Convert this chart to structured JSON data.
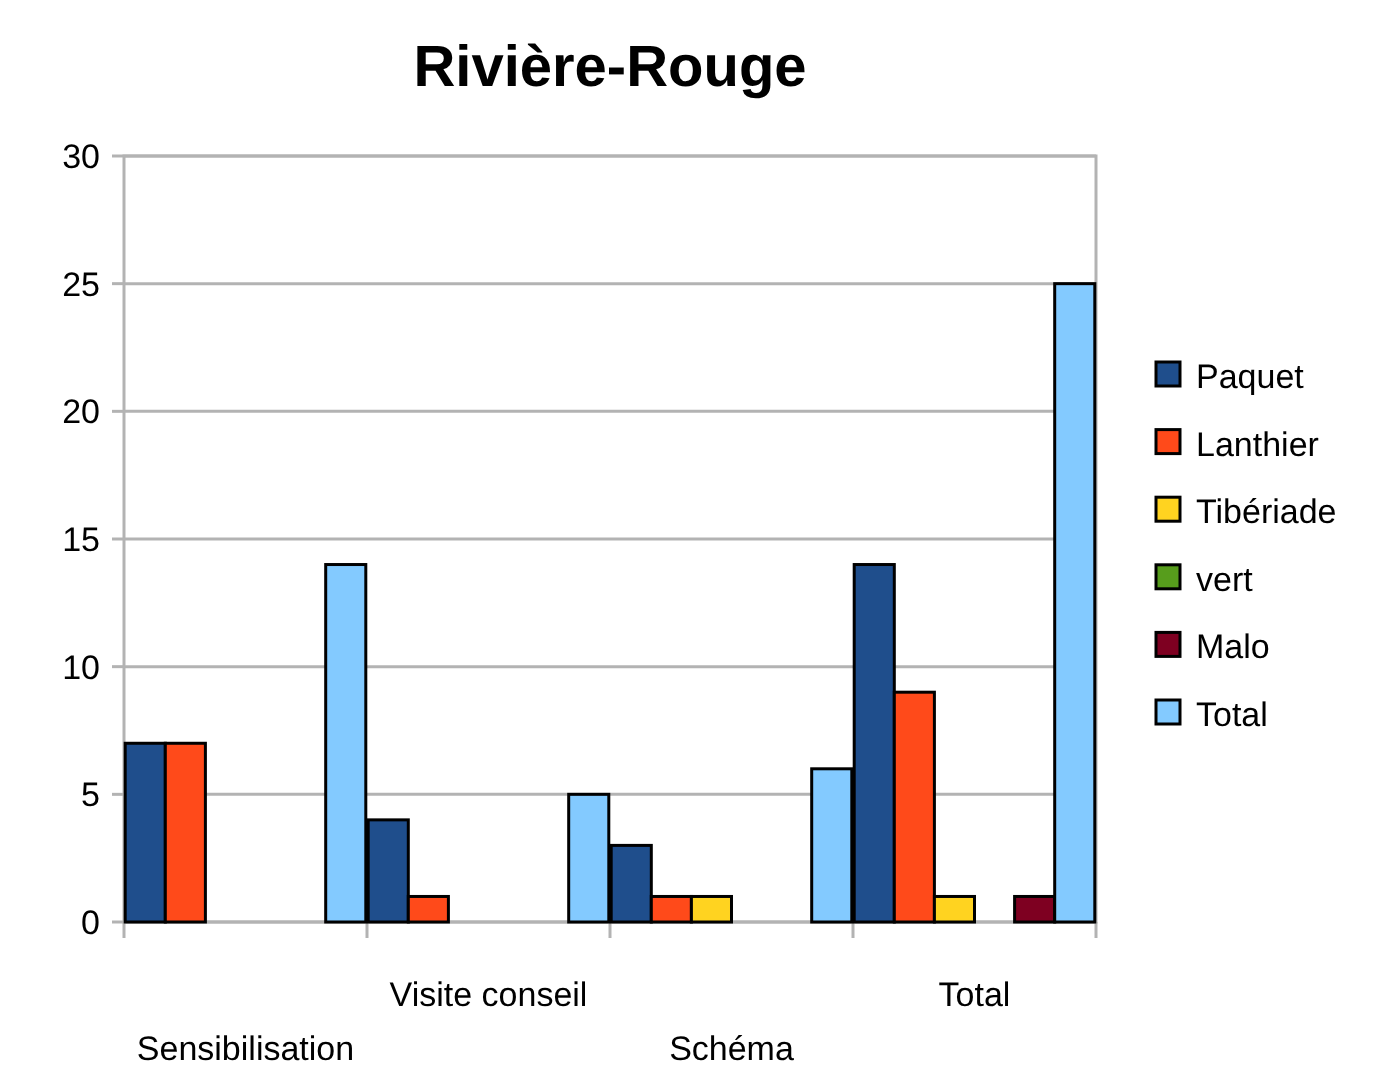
{
  "chart_data": {
    "type": "bar",
    "title": "Rivière-Rouge",
    "categories": [
      "Sensibilisation",
      "Visite conseil",
      "Schéma",
      "Total"
    ],
    "series": [
      {
        "name": "Paquet",
        "color": "#1f4e8c",
        "values": [
          7,
          4,
          3,
          14
        ]
      },
      {
        "name": "Lanthier",
        "color": "#ff4a1a",
        "values": [
          7,
          1,
          1,
          9
        ]
      },
      {
        "name": "Tibériade",
        "color": "#ffd320",
        "values": [
          0,
          0,
          1,
          1
        ]
      },
      {
        "name": "vert",
        "color": "#579d1c",
        "values": [
          0,
          0,
          0,
          0
        ]
      },
      {
        "name": "Malo",
        "color": "#7e0021",
        "values": [
          0,
          0,
          0,
          1
        ]
      },
      {
        "name": "Total",
        "color": "#83caff",
        "values": [
          14,
          5,
          6,
          25
        ]
      }
    ],
    "ylim": [
      0,
      30
    ],
    "yticks": [
      0,
      5,
      10,
      15,
      20,
      25,
      30
    ],
    "grid": "y",
    "legend": "right"
  }
}
